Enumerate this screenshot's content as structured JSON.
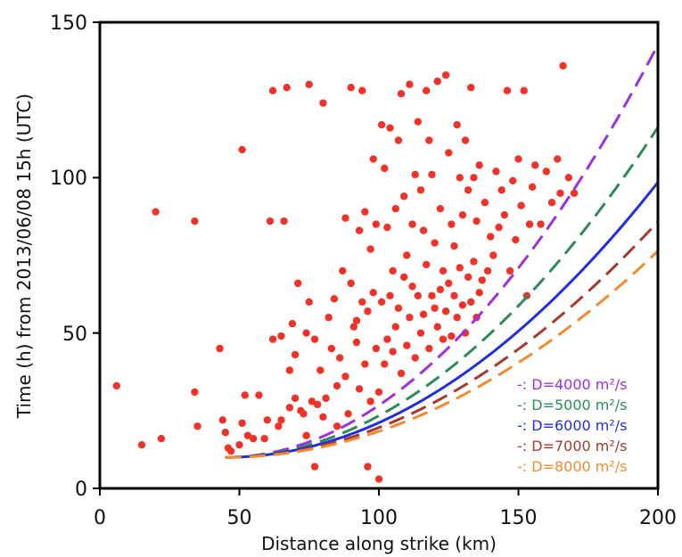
{
  "chart_data": {
    "type": "scatter",
    "xlabel": "Distance along strike (km)",
    "ylabel": "Time (h) from 2013/06/08 15h (UTC)",
    "xlim": [
      0,
      200
    ],
    "ylim": [
      0,
      150
    ],
    "xticks": [
      "0",
      "50",
      "100",
      "150",
      "200"
    ],
    "yticks": [
      "0",
      "50",
      "100",
      "150"
    ],
    "point_color": "#f03228",
    "curve_origin": {
      "x": 45,
      "y": 10
    },
    "series": [
      {
        "kind": "points",
        "x": [
          6,
          15,
          20,
          22,
          34,
          34,
          35,
          43,
          44,
          45,
          46,
          47,
          50,
          51,
          51,
          52,
          53,
          55,
          57,
          59,
          60,
          61,
          62,
          62,
          64,
          65,
          65,
          66,
          67,
          68,
          68,
          69,
          70,
          70,
          71,
          72,
          73,
          74,
          74,
          75,
          75,
          76,
          77,
          77,
          78,
          79,
          80,
          80,
          81,
          82,
          83,
          84,
          85,
          85,
          86,
          87,
          88,
          88,
          89,
          90,
          90,
          91,
          92,
          92,
          93,
          93,
          94,
          94,
          95,
          95,
          96,
          96,
          97,
          97,
          98,
          98,
          99,
          99,
          100,
          100,
          101,
          101,
          102,
          102,
          103,
          103,
          104,
          104,
          105,
          105,
          106,
          106,
          107,
          107,
          108,
          108,
          109,
          109,
          110,
          110,
          111,
          111,
          112,
          112,
          113,
          113,
          114,
          114,
          115,
          115,
          116,
          116,
          117,
          117,
          118,
          118,
          119,
          119,
          120,
          120,
          121,
          121,
          122,
          122,
          123,
          123,
          124,
          124,
          125,
          125,
          126,
          126,
          127,
          127,
          128,
          128,
          129,
          129,
          130,
          130,
          131,
          131,
          132,
          132,
          133,
          133,
          134,
          134,
          135,
          135,
          136,
          136,
          137,
          138,
          139,
          140,
          141,
          142,
          143,
          144,
          145,
          146,
          147,
          148,
          149,
          150,
          151,
          152,
          153,
          154,
          155,
          156,
          158,
          160,
          162,
          164,
          165,
          166,
          168,
          170
        ],
        "y": [
          33,
          14,
          89,
          16,
          86,
          31,
          20,
          45,
          22,
          18,
          13,
          12,
          14,
          109,
          21,
          30,
          17,
          16,
          30,
          16,
          22,
          86,
          128,
          48,
          20,
          22,
          49,
          86,
          129,
          38,
          26,
          53,
          43,
          29,
          66,
          25,
          24,
          50,
          17,
          130,
          60,
          28,
          7,
          48,
          27,
          38,
          124,
          23,
          29,
          55,
          45,
          61,
          20,
          33,
          42,
          70,
          87,
          36,
          24,
          129,
          66,
          52,
          54,
          47,
          83,
          32,
          60,
          128,
          40,
          89,
          57,
          7,
          77,
          28,
          63,
          106,
          85,
          45,
          3,
          31,
          117,
          60,
          40,
          103,
          48,
          84,
          62,
          116,
          44,
          70,
          52,
          90,
          58,
          112,
          127,
          37,
          94,
          68,
          46,
          75,
          130,
          55,
          85,
          65,
          101,
          42,
          62,
          118,
          50,
          96,
          83,
          56,
          72,
          128,
          45,
          112,
          62,
          101,
          58,
          79,
          52,
          131,
          64,
          90,
          48,
          70,
          133,
          57,
          108,
          66,
          49,
          85,
          62,
          78,
          55,
          117,
          71,
          100,
          59,
          88,
          50,
          112,
          68,
          96,
          60,
          129,
          73,
          100,
          55,
          86,
          63,
          104,
          67,
          92,
          70,
          81,
          75,
          102,
          84,
          96,
          88,
          128,
          70,
          99,
          80,
          106,
          91,
          128,
          62,
          85,
          97,
          104,
          85,
          102,
          92,
          106,
          95,
          136,
          100,
          95
        ]
      },
      {
        "kind": "curve",
        "label": "-: D=4000 m²/s",
        "D": 4000,
        "color": "#9b30e0",
        "dash": "18,9"
      },
      {
        "kind": "curve",
        "label": "-: D=5000 m²/s",
        "D": 5000,
        "color": "#2e8b57",
        "dash": "18,9"
      },
      {
        "kind": "curve",
        "label": "-: D=6000 m²/s",
        "D": 6000,
        "color": "#1f2fe0",
        "dash": ""
      },
      {
        "kind": "curve",
        "label": "-: D=7000 m²/s",
        "D": 7000,
        "color": "#a23a2e",
        "dash": "18,9"
      },
      {
        "kind": "curve",
        "label": "-: D=8000 m²/s",
        "D": 8000,
        "color": "#f28a30",
        "dash": "18,9"
      }
    ],
    "legend": "bottom-right",
    "grid": false
  }
}
